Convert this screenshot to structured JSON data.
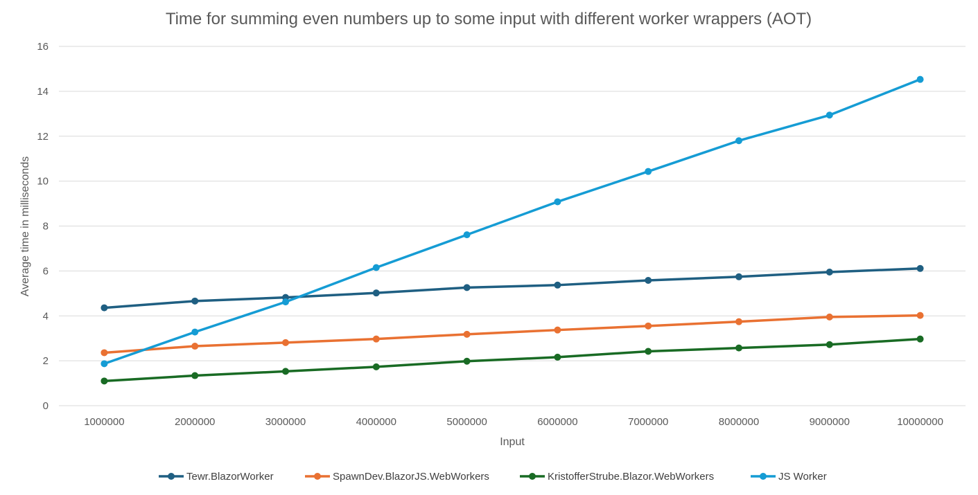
{
  "chart_data": {
    "type": "line",
    "title": "Time for summing even numbers up to some input with different worker wrappers (AOT)",
    "xlabel": "Input",
    "ylabel": "Average time in milliseconds",
    "categories": [
      "1000000",
      "2000000",
      "3000000",
      "4000000",
      "5000000",
      "6000000",
      "7000000",
      "8000000",
      "9000000",
      "10000000"
    ],
    "ylim": [
      0,
      16
    ],
    "yticks": [
      "0",
      "2",
      "4",
      "6",
      "8",
      "10",
      "12",
      "14",
      "16"
    ],
    "grid": true,
    "legend_position": "bottom",
    "series": [
      {
        "name": "Tewr.BlazorWorker",
        "color": "#1f5f82",
        "values": [
          4.36,
          4.66,
          4.82,
          5.02,
          5.26,
          5.37,
          5.58,
          5.74,
          5.95,
          6.11
        ]
      },
      {
        "name": "SpawnDev.BlazorJS.WebWorkers",
        "color": "#e97132",
        "values": [
          2.36,
          2.65,
          2.81,
          2.97,
          3.18,
          3.37,
          3.55,
          3.74,
          3.95,
          4.02
        ]
      },
      {
        "name": "KristofferStrube.Blazor.WebWorkers",
        "color": "#196b24",
        "values": [
          1.1,
          1.34,
          1.53,
          1.73,
          1.98,
          2.16,
          2.42,
          2.57,
          2.72,
          2.97
        ]
      },
      {
        "name": "JS Worker",
        "color": "#159cd4",
        "values": [
          1.87,
          3.28,
          4.62,
          6.15,
          7.61,
          9.08,
          10.43,
          11.8,
          12.94,
          14.53
        ]
      }
    ]
  }
}
